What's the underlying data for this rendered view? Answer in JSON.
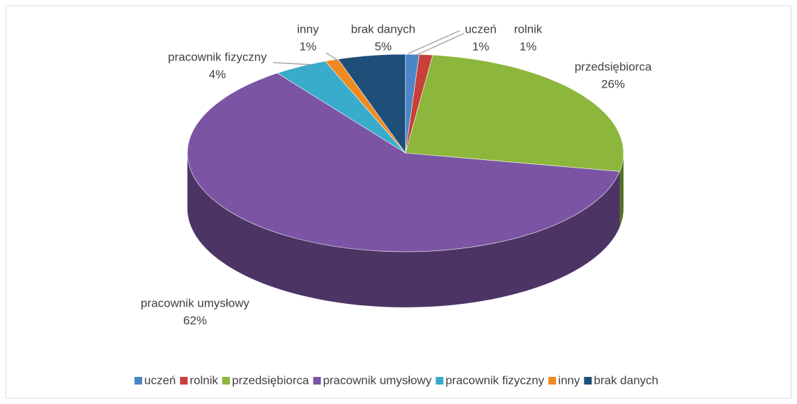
{
  "chart_data": {
    "type": "pie3d",
    "categories": [
      "uczeń",
      "rolnik",
      "przedsiębiorca",
      "pracownik umysłowy",
      "pracownik fizyczny",
      "inny",
      "brak danych"
    ],
    "values": [
      1,
      1,
      26,
      62,
      4,
      1,
      5
    ],
    "value_labels": [
      "1%",
      "1%",
      "26%",
      "62%",
      "4%",
      "1%",
      "5%"
    ],
    "colors": [
      "#4a86c8",
      "#c8403a",
      "#8db63c",
      "#7b55a3",
      "#3aaccb",
      "#ef8a22",
      "#1f4e79"
    ],
    "legend": "bottom"
  }
}
